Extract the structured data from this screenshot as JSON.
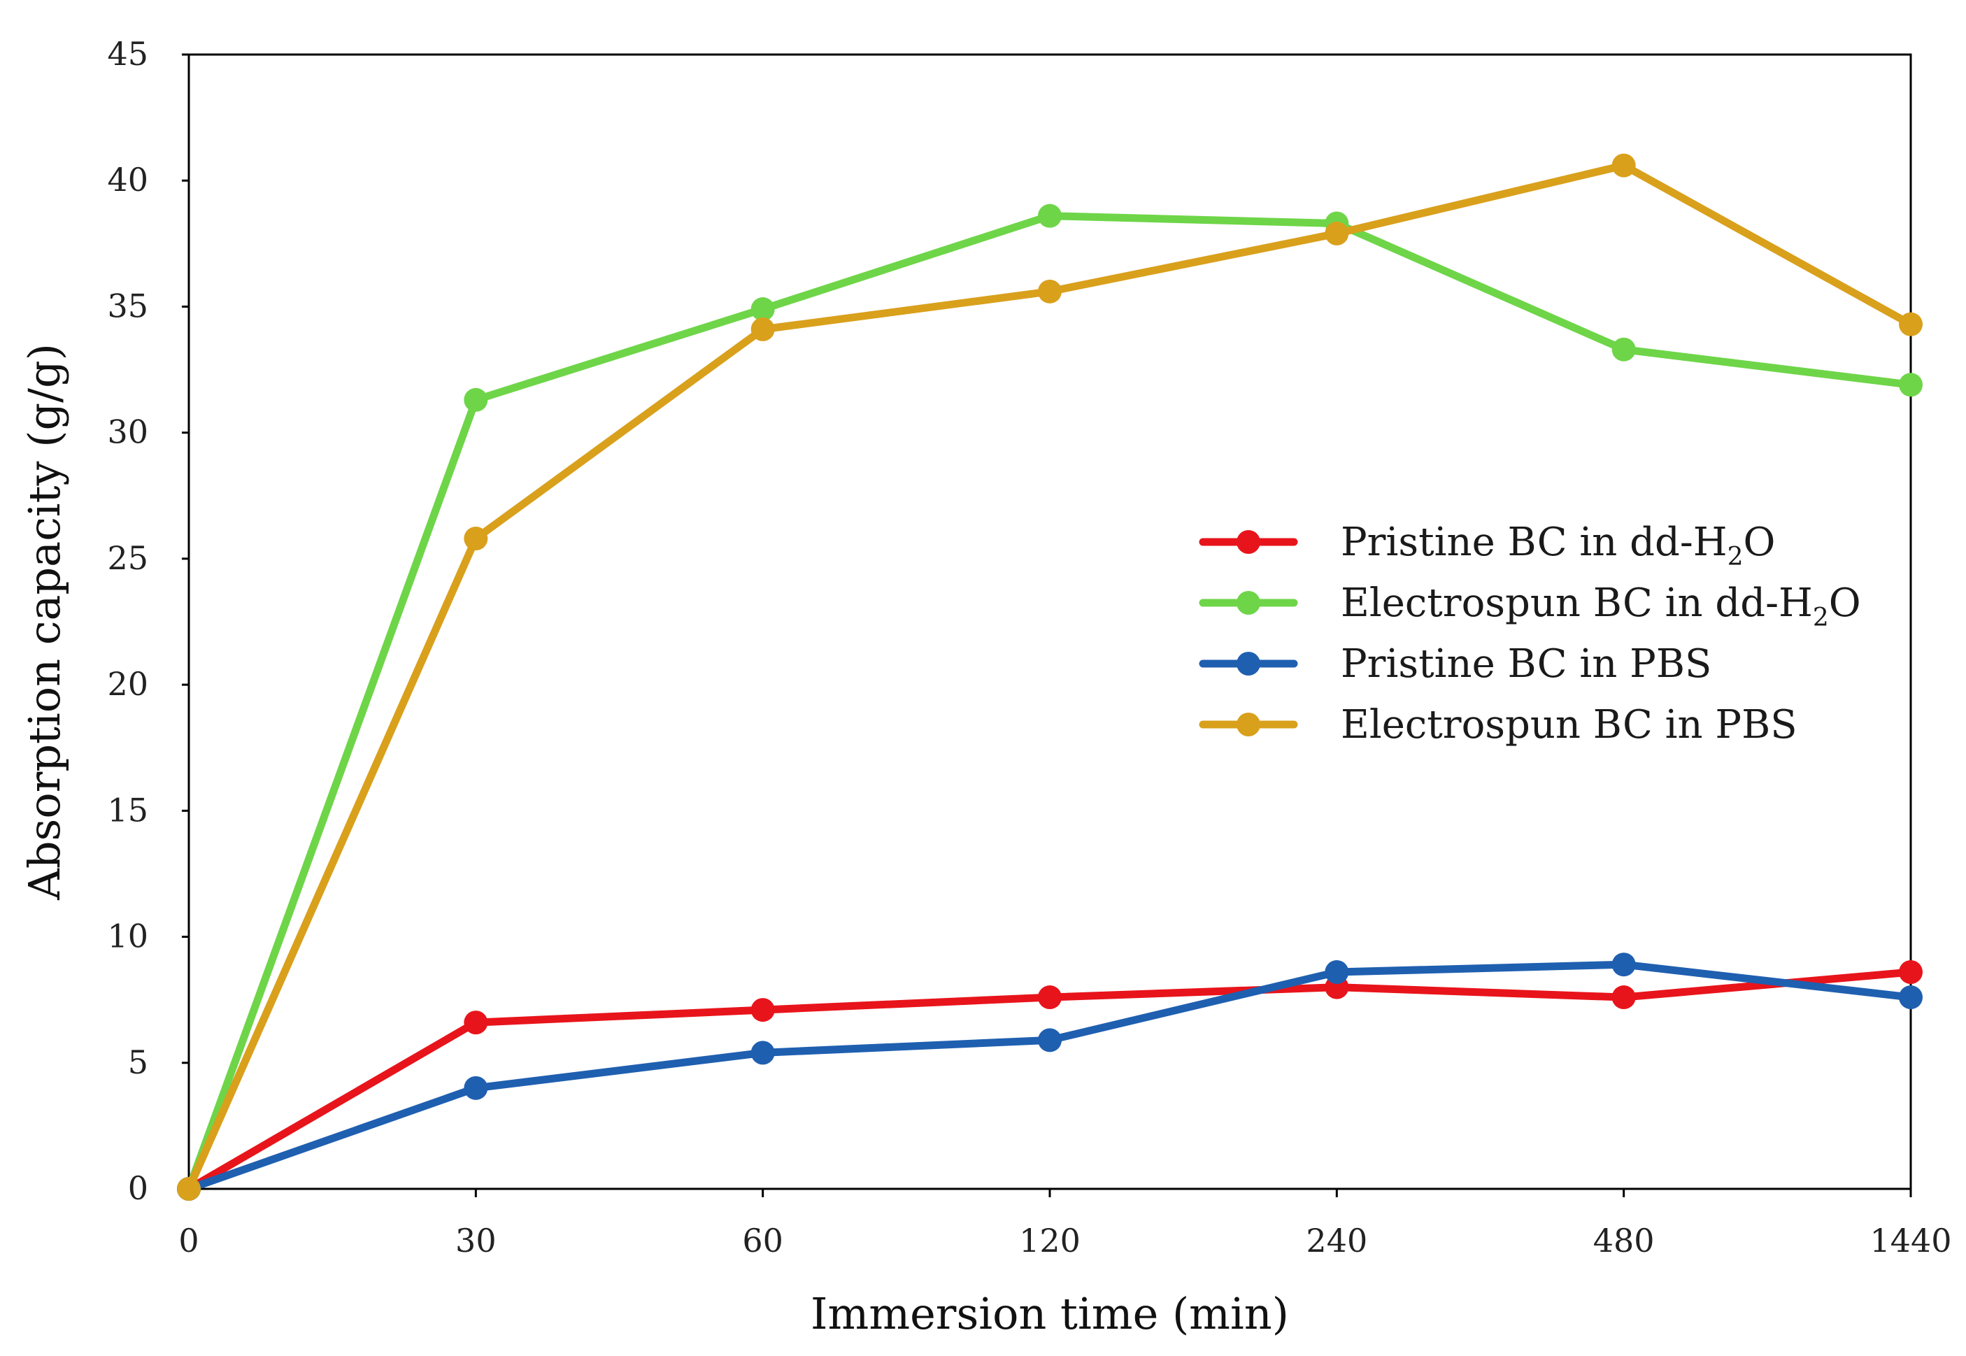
{
  "chart_data": {
    "type": "line",
    "title": "",
    "xlabel": "Immersion time (min)",
    "ylabel": "Absorption capacity (g/g)",
    "categories": [
      "0",
      "30",
      "60",
      "120",
      "240",
      "480",
      "1440"
    ],
    "ylim": [
      0,
      45
    ],
    "yticks": [
      0,
      5,
      10,
      15,
      20,
      25,
      30,
      35,
      40,
      45
    ],
    "grid": false,
    "legend_position": "center-right",
    "series": [
      {
        "name": "Pristine BC in dd-H2O",
        "label_main": "Pristine BC in dd-H",
        "label_sub": "2",
        "label_tail": "O",
        "color": "#e8141b",
        "values": [
          0,
          6.6,
          7.1,
          7.6,
          8.0,
          7.6,
          8.6
        ]
      },
      {
        "name": "Electrospun BC in dd-H2O",
        "label_main": "Electrospun BC in dd-H",
        "label_sub": "2",
        "label_tail": "O",
        "color": "#6ed548",
        "values": [
          0,
          31.3,
          34.9,
          38.6,
          38.3,
          33.3,
          31.9
        ]
      },
      {
        "name": "Pristine BC in PBS",
        "label_main": "Pristine BC in PBS",
        "label_sub": "",
        "label_tail": "",
        "color": "#1f5fb0",
        "values": [
          0,
          4.0,
          5.4,
          5.9,
          8.6,
          8.9,
          7.6
        ]
      },
      {
        "name": "Electrospun BC in PBS",
        "label_main": "Electrospun BC in PBS",
        "label_sub": "",
        "label_tail": "",
        "color": "#d9a01c",
        "values": [
          0,
          25.8,
          34.1,
          35.6,
          37.9,
          40.6,
          34.3
        ]
      }
    ]
  }
}
